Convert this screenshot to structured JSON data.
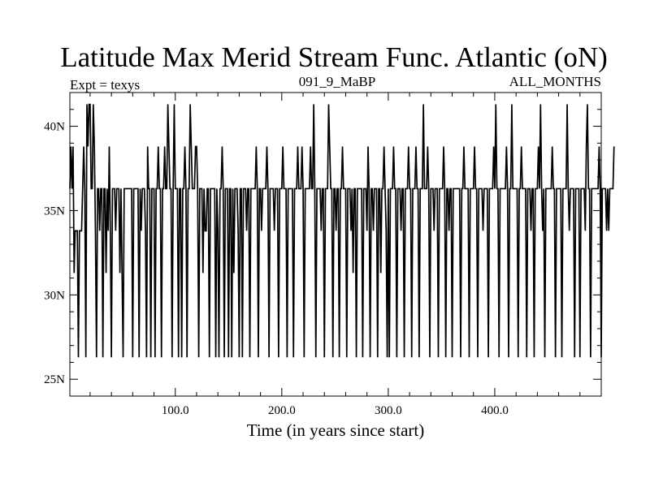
{
  "chart_data": {
    "type": "line",
    "title": "Latitude Max Merid Stream Func. Atlantic (oN)",
    "subtitle_left": "Expt = texys",
    "subtitle_center": "091_9_MaBP",
    "subtitle_right": "ALL_MONTHS",
    "xlabel": "Time (in years since start)",
    "ylabel": "",
    "xlim": [
      1,
      500
    ],
    "ylim": [
      24,
      42
    ],
    "x_ticks": [
      {
        "value": 100,
        "label": "100.0"
      },
      {
        "value": 200,
        "label": "200.0"
      },
      {
        "value": 300,
        "label": "300.0"
      },
      {
        "value": 400,
        "label": "400.0"
      }
    ],
    "y_ticks": [
      {
        "value": 25,
        "label": "25N"
      },
      {
        "value": 30,
        "label": "30N"
      },
      {
        "value": 35,
        "label": "35N"
      },
      {
        "value": 40,
        "label": "40N"
      }
    ],
    "grid": false,
    "series": [
      {
        "color": "#000000",
        "x_start": 1,
        "x_step": 1,
        "values": [
          36.3,
          38.8,
          36.3,
          38.8,
          31.3,
          33.8,
          33.8,
          33.8,
          26.3,
          33.8,
          33.8,
          33.8,
          36.3,
          38.8,
          36.3,
          26.3,
          41.3,
          38.8,
          41.3,
          41.3,
          36.3,
          36.3,
          41.3,
          38.8,
          33.8,
          26.3,
          36.3,
          36.3,
          33.8,
          36.3,
          36.3,
          26.3,
          36.3,
          36.3,
          31.3,
          36.3,
          33.8,
          38.8,
          33.8,
          26.3,
          36.3,
          36.3,
          36.3,
          33.8,
          36.3,
          36.3,
          36.3,
          31.3,
          36.3,
          31.3,
          26.3,
          36.3,
          36.3,
          36.3,
          36.3,
          36.3,
          36.3,
          36.3,
          36.3,
          26.3,
          36.3,
          36.3,
          36.3,
          36.3,
          36.3,
          26.3,
          36.3,
          33.8,
          36.3,
          36.3,
          36.3,
          33.8,
          26.3,
          38.8,
          36.3,
          36.3,
          26.3,
          36.3,
          36.3,
          36.3,
          26.3,
          36.3,
          36.3,
          38.8,
          36.3,
          36.3,
          26.3,
          36.3,
          36.3,
          38.8,
          36.3,
          36.3,
          41.3,
          38.8,
          36.3,
          36.3,
          26.3,
          36.3,
          41.3,
          36.3,
          36.3,
          36.3,
          26.3,
          36.3,
          36.3,
          26.3,
          36.3,
          36.3,
          38.8,
          36.3,
          26.3,
          36.3,
          36.3,
          41.3,
          38.8,
          36.3,
          36.3,
          36.3,
          38.8,
          38.8,
          36.3,
          26.3,
          36.3,
          36.3,
          36.3,
          31.3,
          36.3,
          33.8,
          33.8,
          36.3,
          36.3,
          26.3,
          36.3,
          36.3,
          36.3,
          36.3,
          36.3,
          26.3,
          36.3,
          33.8,
          26.3,
          36.3,
          36.3,
          38.8,
          36.3,
          26.3,
          36.3,
          36.3,
          36.3,
          26.3,
          36.3,
          36.3,
          26.3,
          36.3,
          31.3,
          36.3,
          36.3,
          36.3,
          33.8,
          26.3,
          36.3,
          36.3,
          26.3,
          36.3,
          36.3,
          36.3,
          33.8,
          36.3,
          36.3,
          26.3,
          36.3,
          36.3,
          36.3,
          36.3,
          36.3,
          38.8,
          36.3,
          26.3,
          36.3,
          36.3,
          33.8,
          36.3,
          36.3,
          36.3,
          36.3,
          38.8,
          36.3,
          26.3,
          36.3,
          36.3,
          36.3,
          36.3,
          33.8,
          36.3,
          36.3,
          36.3,
          26.3,
          36.3,
          36.3,
          36.3,
          38.8,
          36.3,
          36.3,
          36.3,
          26.3,
          36.3,
          36.3,
          36.3,
          36.3,
          36.3,
          26.3,
          36.3,
          36.3,
          36.3,
          38.8,
          36.3,
          36.3,
          36.3,
          38.8,
          36.3,
          26.3,
          36.3,
          36.3,
          36.3,
          36.3,
          36.3,
          38.8,
          36.3,
          36.3,
          41.3,
          36.3,
          26.3,
          36.3,
          36.3,
          36.3,
          36.3,
          33.8,
          36.3,
          36.3,
          26.3,
          36.3,
          36.3,
          36.3,
          41.3,
          38.8,
          36.3,
          36.3,
          26.3,
          36.3,
          36.3,
          33.8,
          36.3,
          36.3,
          26.3,
          36.3,
          36.3,
          38.8,
          36.3,
          36.3,
          36.3,
          26.3,
          36.3,
          36.3,
          36.3,
          33.8,
          36.3,
          31.3,
          36.3,
          36.3,
          26.3,
          36.3,
          36.3,
          36.3,
          36.3,
          36.3,
          26.3,
          36.3,
          36.3,
          36.3,
          33.8,
          38.8,
          36.3,
          26.3,
          36.3,
          36.3,
          33.8,
          36.3,
          36.3,
          36.3,
          26.3,
          36.3,
          36.3,
          31.3,
          36.3,
          36.3,
          38.8,
          36.3,
          33.8,
          26.3,
          36.3,
          26.3,
          36.3,
          36.3,
          36.3,
          38.8,
          36.3,
          36.3,
          26.3,
          36.3,
          36.3,
          36.3,
          33.8,
          36.3,
          36.3,
          26.3,
          36.3,
          36.3,
          36.3,
          38.8,
          36.3,
          36.3,
          26.3,
          36.3,
          36.3,
          36.3,
          38.8,
          36.3,
          36.3,
          26.3,
          36.3,
          36.3,
          36.3,
          41.3,
          36.3,
          36.3,
          36.3,
          38.8,
          36.3,
          26.3,
          36.3,
          36.3,
          36.3,
          33.8,
          36.3,
          36.3,
          36.3,
          26.3,
          36.3,
          36.3,
          36.3,
          36.3,
          38.8,
          36.3,
          26.3,
          36.3,
          36.3,
          33.8,
          36.3,
          36.3,
          26.3,
          36.3,
          36.3,
          36.3,
          36.3,
          36.3,
          36.3,
          36.3,
          26.3,
          36.3,
          36.3,
          38.8,
          36.3,
          36.3,
          36.3,
          36.3,
          26.3,
          36.3,
          36.3,
          36.3,
          36.3,
          38.8,
          36.3,
          36.3,
          26.3,
          36.3,
          36.3,
          36.3,
          36.3,
          33.8,
          36.3,
          36.3,
          36.3,
          36.3,
          26.3,
          36.3,
          36.3,
          36.3,
          36.3,
          38.8,
          36.3,
          41.3,
          36.3,
          36.3,
          26.3,
          36.3,
          36.3,
          36.3,
          36.3,
          36.3,
          36.3,
          38.8,
          36.3,
          26.3,
          36.3,
          36.3,
          41.3,
          36.3,
          36.3,
          36.3,
          36.3,
          36.3,
          26.3,
          36.3,
          36.3,
          38.8,
          36.3,
          36.3,
          36.3,
          36.3,
          26.3,
          36.3,
          36.3,
          36.3,
          33.8,
          36.3,
          36.3,
          26.3,
          36.3,
          36.3,
          36.3,
          38.8,
          36.3,
          41.3,
          36.3,
          33.8,
          36.3,
          26.3,
          36.3,
          36.3,
          36.3,
          36.3,
          36.3,
          36.3,
          38.8,
          36.3,
          36.3,
          26.3,
          36.3,
          36.3,
          36.3,
          36.3,
          36.3,
          26.3,
          36.3,
          36.3,
          36.3,
          36.3,
          41.3,
          36.3,
          33.8,
          36.3,
          36.3,
          36.3,
          36.3,
          26.3,
          36.3,
          36.3,
          36.3,
          36.3,
          26.3,
          36.3,
          36.3,
          36.3,
          36.3,
          33.8,
          38.8,
          41.3,
          36.3,
          36.3,
          26.3,
          36.3,
          36.3,
          36.3,
          36.3,
          36.3,
          36.3,
          36.3,
          38.8,
          36.3,
          26.3,
          36.3,
          36.3,
          36.3,
          36.3,
          33.8,
          36.3,
          33.8,
          36.3,
          36.3,
          36.3,
          36.3,
          38.8
        ]
      }
    ]
  }
}
